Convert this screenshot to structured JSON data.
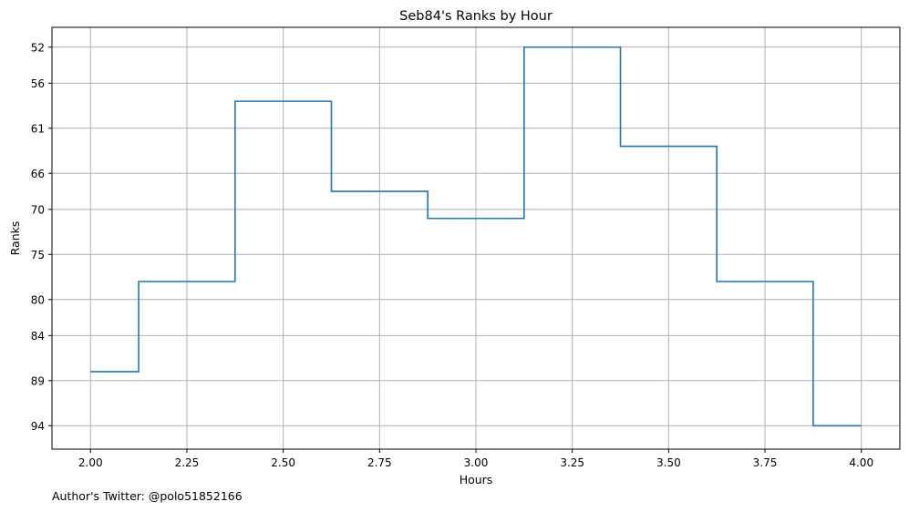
{
  "chart_data": {
    "type": "line",
    "step": "mid",
    "title": "Seb84's Ranks by Hour",
    "xlabel": "Hours",
    "ylabel": "Ranks",
    "y_inverted": true,
    "grid": true,
    "xlim": [
      1.9,
      4.1
    ],
    "ylim": [
      96.6,
      49.8
    ],
    "x_ticks": [
      2.0,
      2.25,
      2.5,
      2.75,
      3.0,
      3.25,
      3.5,
      3.75,
      4.0
    ],
    "x_tick_labels": [
      "2.00",
      "2.25",
      "2.50",
      "2.75",
      "3.00",
      "3.25",
      "3.50",
      "3.75",
      "4.00"
    ],
    "y_ticks": [
      52,
      56,
      61,
      66,
      70,
      75,
      80,
      84,
      89,
      94
    ],
    "y_tick_labels": [
      "52",
      "56",
      "61",
      "66",
      "70",
      "75",
      "80",
      "84",
      "89",
      "94"
    ],
    "series": [
      {
        "color": "#1f77b4",
        "x": [
          2.0,
          2.25,
          2.5,
          2.75,
          3.0,
          3.25,
          3.5,
          3.75,
          4.0
        ],
        "y": [
          88,
          78,
          58,
          68,
          71,
          52,
          63,
          78,
          94
        ]
      }
    ]
  },
  "footer": {
    "credit": "Author's Twitter: @polo51852166"
  }
}
